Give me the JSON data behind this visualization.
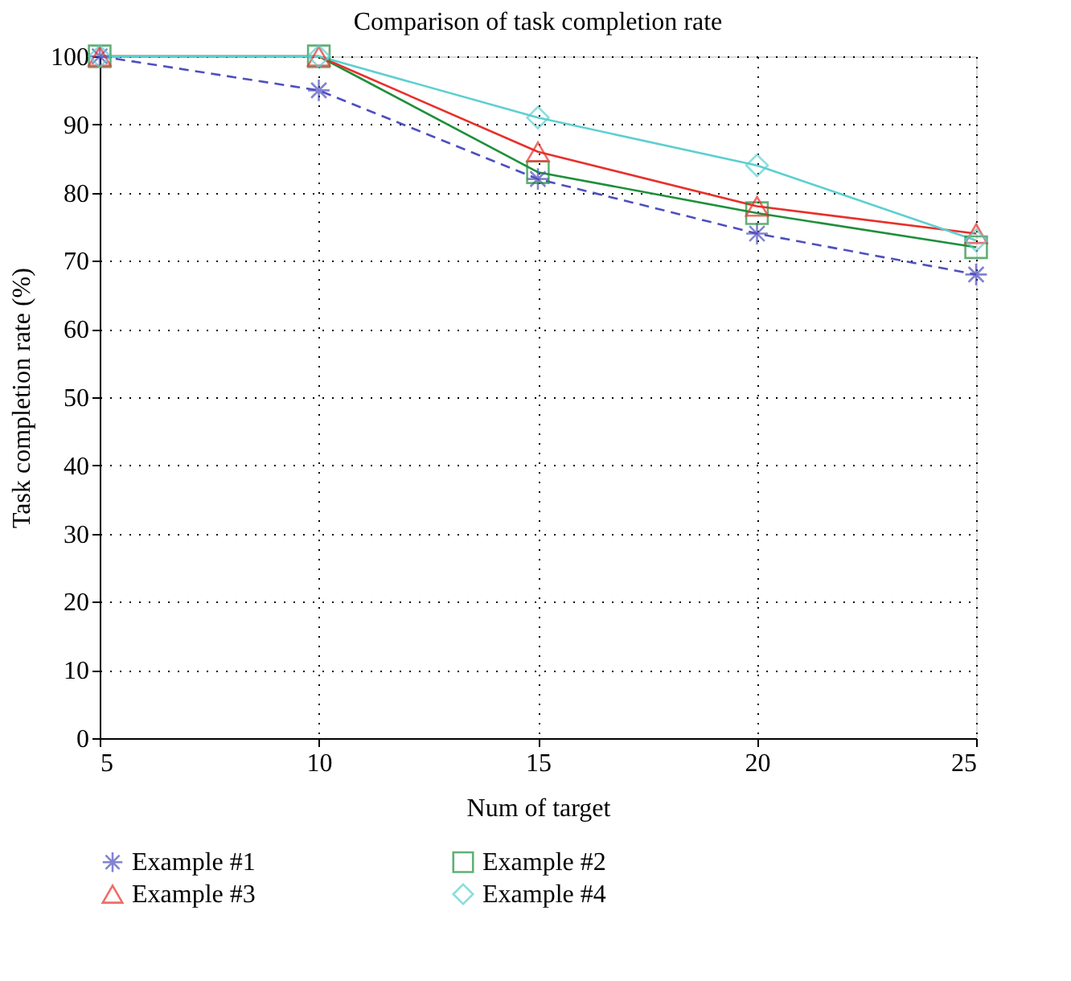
{
  "chart_data": {
    "type": "line",
    "title": "Comparison of task completion rate",
    "xlabel": "Num of target",
    "ylabel": "Task completion rate (%)",
    "x": [
      5,
      10,
      15,
      20,
      25
    ],
    "xlim": [
      5,
      25
    ],
    "xticks": [
      5,
      10,
      15,
      20,
      25
    ],
    "ylim": [
      0,
      100
    ],
    "yticks": [
      0,
      10,
      20,
      30,
      40,
      50,
      60,
      70,
      80,
      90,
      100
    ],
    "grid": true,
    "legend": "bottom",
    "series": [
      {
        "name": "Example #1",
        "color": "#4f4fbf",
        "marker": "cross",
        "line_style": "dashed",
        "values": [
          100,
          95,
          82,
          74,
          68
        ]
      },
      {
        "name": "Example #2",
        "color": "#1f8f3a",
        "marker": "square",
        "line_style": "solid",
        "values": [
          100,
          100,
          83,
          77,
          72
        ]
      },
      {
        "name": "Example #3",
        "color": "#e8302a",
        "marker": "triangle",
        "line_style": "solid",
        "values": [
          100,
          100,
          86,
          78,
          74
        ]
      },
      {
        "name": "Example #4",
        "color": "#5ccfd0",
        "marker": "diamond",
        "line_style": "solid",
        "values": [
          100,
          100,
          91,
          84,
          73
        ]
      }
    ]
  }
}
